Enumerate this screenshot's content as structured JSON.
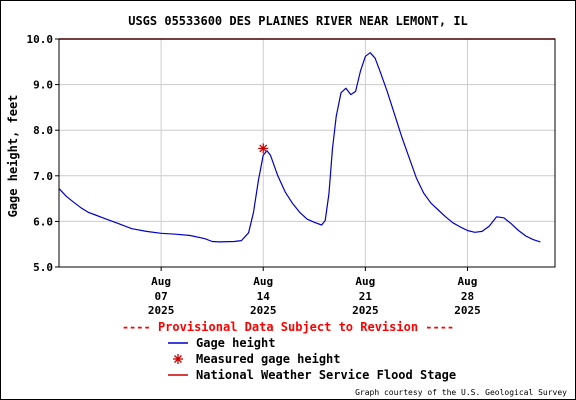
{
  "chart_data": {
    "type": "line",
    "title": "USGS 05533600 DES PLAINES RIVER NEAR LEMONT, IL",
    "ylabel": "Gage height, feet",
    "xlabel": "",
    "ylim": [
      5.0,
      10.0
    ],
    "yticks": [
      "5.0",
      "6.0",
      "7.0",
      "8.0",
      "9.0",
      "10.0"
    ],
    "xlim": [
      "2025-07-31",
      "2025-09-03"
    ],
    "xticks": [
      {
        "date": "2025-08-07",
        "month": "Aug",
        "day": "07",
        "year": "2025"
      },
      {
        "date": "2025-08-14",
        "month": "Aug",
        "day": "14",
        "year": "2025"
      },
      {
        "date": "2025-08-21",
        "month": "Aug",
        "day": "21",
        "year": "2025"
      },
      {
        "date": "2025-08-28",
        "month": "Aug",
        "day": "28",
        "year": "2025"
      }
    ],
    "grid": true,
    "legend_placement": "bottom",
    "series": [
      {
        "name": "Gage height",
        "type": "line",
        "color": "#0000cc",
        "points": [
          [
            "2025-07-31 00:00",
            6.72
          ],
          [
            "2025-07-31 12:00",
            6.55
          ],
          [
            "2025-08-01 00:00",
            6.42
          ],
          [
            "2025-08-01 12:00",
            6.3
          ],
          [
            "2025-08-02 00:00",
            6.2
          ],
          [
            "2025-08-02 12:00",
            6.14
          ],
          [
            "2025-08-03 00:00",
            6.08
          ],
          [
            "2025-08-04 00:00",
            5.96
          ],
          [
            "2025-08-05 00:00",
            5.84
          ],
          [
            "2025-08-06 00:00",
            5.78
          ],
          [
            "2025-08-07 00:00",
            5.74
          ],
          [
            "2025-08-08 00:00",
            5.72
          ],
          [
            "2025-08-09 00:00",
            5.69
          ],
          [
            "2025-08-10 00:00",
            5.62
          ],
          [
            "2025-08-10 12:00",
            5.56
          ],
          [
            "2025-08-11 00:00",
            5.55
          ],
          [
            "2025-08-12 00:00",
            5.56
          ],
          [
            "2025-08-12 12:00",
            5.58
          ],
          [
            "2025-08-13 00:00",
            5.75
          ],
          [
            "2025-08-13 08:00",
            6.2
          ],
          [
            "2025-08-13 16:00",
            6.9
          ],
          [
            "2025-08-14 00:00",
            7.45
          ],
          [
            "2025-08-14 06:00",
            7.55
          ],
          [
            "2025-08-14 12:00",
            7.45
          ],
          [
            "2025-08-15 00:00",
            7.0
          ],
          [
            "2025-08-15 12:00",
            6.65
          ],
          [
            "2025-08-16 00:00",
            6.4
          ],
          [
            "2025-08-16 12:00",
            6.2
          ],
          [
            "2025-08-17 00:00",
            6.05
          ],
          [
            "2025-08-17 12:00",
            5.98
          ],
          [
            "2025-08-18 00:00",
            5.92
          ],
          [
            "2025-08-18 06:00",
            6.02
          ],
          [
            "2025-08-18 12:00",
            6.6
          ],
          [
            "2025-08-18 18:00",
            7.6
          ],
          [
            "2025-08-19 00:00",
            8.3
          ],
          [
            "2025-08-19 08:00",
            8.82
          ],
          [
            "2025-08-19 16:00",
            8.92
          ],
          [
            "2025-08-20 00:00",
            8.78
          ],
          [
            "2025-08-20 08:00",
            8.85
          ],
          [
            "2025-08-20 16:00",
            9.3
          ],
          [
            "2025-08-21 00:00",
            9.62
          ],
          [
            "2025-08-21 08:00",
            9.7
          ],
          [
            "2025-08-21 16:00",
            9.58
          ],
          [
            "2025-08-22 00:00",
            9.3
          ],
          [
            "2025-08-22 12:00",
            8.85
          ],
          [
            "2025-08-23 00:00",
            8.35
          ],
          [
            "2025-08-23 12:00",
            7.85
          ],
          [
            "2025-08-24 00:00",
            7.4
          ],
          [
            "2025-08-24 12:00",
            6.95
          ],
          [
            "2025-08-25 00:00",
            6.62
          ],
          [
            "2025-08-25 12:00",
            6.4
          ],
          [
            "2025-08-26 00:00",
            6.25
          ],
          [
            "2025-08-26 12:00",
            6.1
          ],
          [
            "2025-08-27 00:00",
            5.97
          ],
          [
            "2025-08-27 12:00",
            5.88
          ],
          [
            "2025-08-28 00:00",
            5.8
          ],
          [
            "2025-08-28 12:00",
            5.76
          ],
          [
            "2025-08-29 00:00",
            5.78
          ],
          [
            "2025-08-29 12:00",
            5.9
          ],
          [
            "2025-08-30 00:00",
            6.1
          ],
          [
            "2025-08-30 12:00",
            6.08
          ],
          [
            "2025-08-31 00:00",
            5.95
          ],
          [
            "2025-08-31 12:00",
            5.8
          ],
          [
            "2025-09-01 00:00",
            5.68
          ],
          [
            "2025-09-01 12:00",
            5.6
          ],
          [
            "2025-09-02 00:00",
            5.55
          ]
        ]
      },
      {
        "name": "Measured gage height",
        "type": "scatter",
        "marker": "asterisk",
        "color": "#cc0000",
        "points": [
          [
            "2025-08-14 00:00",
            7.6
          ]
        ]
      },
      {
        "name": "National Weather Service Flood Stage",
        "type": "hline",
        "color": "#cc0000",
        "value": 10.0
      }
    ],
    "annotations": [
      "---- Provisional Data Subject to Revision ----",
      "Graph courtesy of the U.S. Geological Survey"
    ]
  }
}
